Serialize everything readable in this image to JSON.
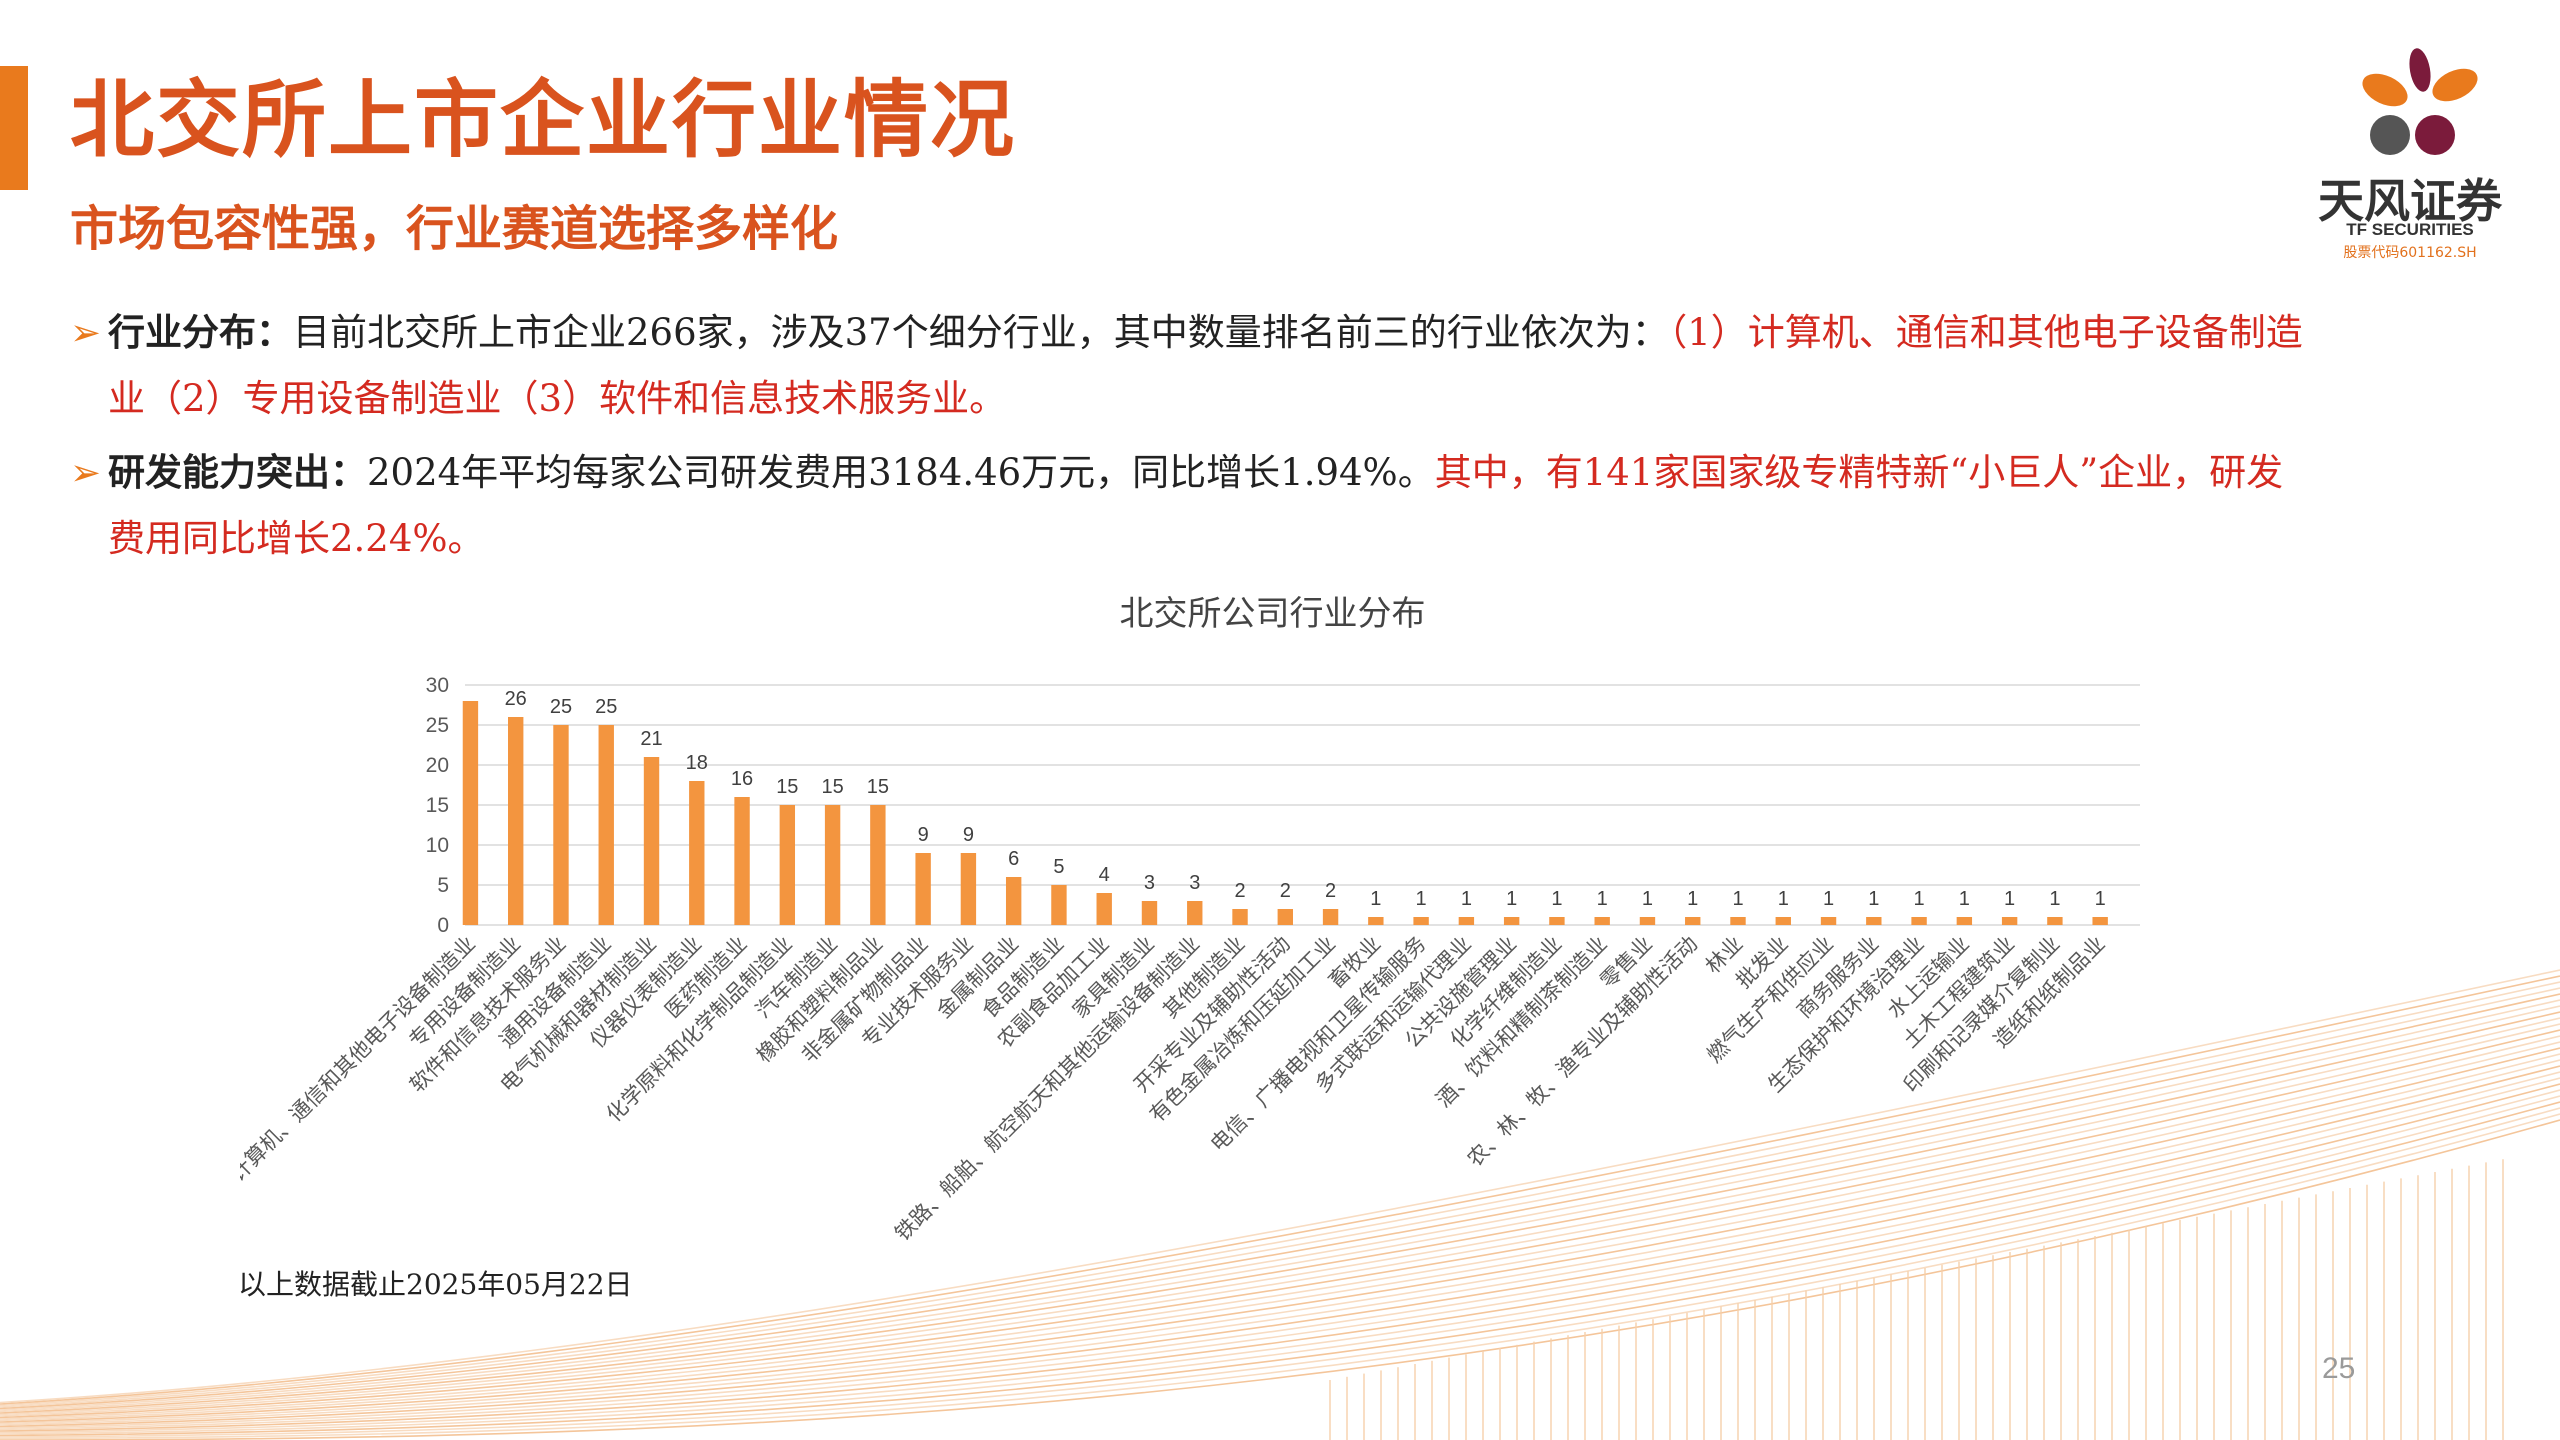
{
  "colors": {
    "accent": "#e97a1d",
    "title": "#d9531e",
    "highlight": "#d42a20",
    "bar": "#f3953f"
  },
  "title": "北交所上市企业行业情况",
  "subtitle": "市场包容性强，行业赛道选择多样化",
  "logo": {
    "name_cn": "天风证券",
    "name_en": "TF SECURITIES",
    "stock_code": "股票代码601162.SH"
  },
  "bullets": [
    {
      "icon": "arrow-bullet-icon",
      "lead": "行业分布：",
      "text": "目前北交所上市企业266家，涉及37个细分行业，其中数量排名前三的行业依次为：",
      "highlight": "（1）计算机、通信和其他电子设备制造业（2）专用设备制造业（3）软件和信息技术服务业。"
    },
    {
      "icon": "arrow-bullet-icon",
      "lead": "研发能力突出：",
      "text": "2024年平均每家公司研发费用3184.46万元，同比增长1.94%。",
      "highlight": "其中，有141家国家级专精特新“小巨人”企业，研发费用同比增长2.24%。"
    }
  ],
  "chart_data": {
    "type": "bar",
    "title": "北交所公司行业分布",
    "xlabel": "",
    "ylabel": "",
    "ylim": [
      0,
      30
    ],
    "yticks": [
      0,
      5,
      10,
      15,
      20,
      25,
      30
    ],
    "grid": true,
    "categories": [
      "计算机、通信和其他电子设备制造业",
      "专用设备制造业",
      "软件和信息技术服务业",
      "通用设备制造业",
      "电气机械和器材制造业",
      "仪器仪表制造业",
      "医药制造业",
      "化学原料和化学制品制造业",
      "汽车制造业",
      "橡胶和塑料制品业",
      "非金属矿物制品业",
      "专业技术服务业",
      "金属制品业",
      "食品制造业",
      "农副食品加工业",
      "家具制造业",
      "铁路、船舶、航空航天和其他运输设备制造业",
      "其他制造业",
      "开采专业及辅助性活动",
      "有色金属冶炼和压延加工业",
      "畜牧业",
      "电信、广播电视和卫星传输服务",
      "多式联运和运输代理业",
      "公共设施管理业",
      "化学纤维制造业",
      "酒、饮料和精制茶制造业",
      "零售业",
      "农、林、牧、渔专业及辅助性活动",
      "林业",
      "批发业",
      "燃气生产和供应业",
      "商务服务业",
      "生态保护和环境治理业",
      "水上运输业",
      "土木工程建筑业",
      "印刷和记录媒介复制业",
      "造纸和纸制品业"
    ],
    "values": [
      28,
      26,
      25,
      25,
      21,
      18,
      16,
      15,
      15,
      15,
      9,
      9,
      6,
      5,
      4,
      3,
      3,
      2,
      2,
      2,
      1,
      1,
      1,
      1,
      1,
      1,
      1,
      1,
      1,
      1,
      1,
      1,
      1,
      1,
      1,
      1,
      1
    ],
    "data_labels": [
      "",
      "26",
      "25",
      "25",
      "21",
      "18",
      "16",
      "15",
      "15",
      "15",
      "9",
      "9",
      "6",
      "5",
      "4",
      "3",
      "3",
      "2",
      "2",
      "2",
      "1",
      "1",
      "1",
      "1",
      "1",
      "1",
      "1",
      "1",
      "1",
      "1",
      "1",
      "1",
      "1",
      "1",
      "1",
      "1",
      "1"
    ]
  },
  "note": "以上数据截止2025年05月22日",
  "page_number": "25"
}
